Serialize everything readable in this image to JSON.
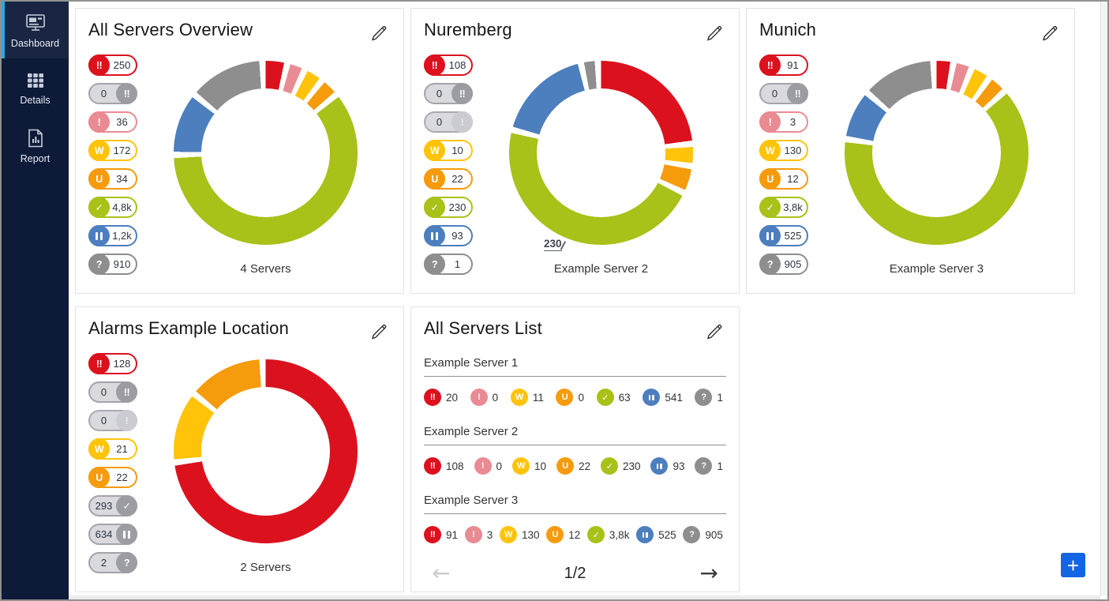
{
  "sidebar": {
    "items": [
      {
        "label": "Dashboard",
        "icon": "dashboard-icon",
        "active": true
      },
      {
        "label": "Details",
        "icon": "details-icon",
        "active": false
      },
      {
        "label": "Report",
        "icon": "report-icon",
        "active": false
      }
    ]
  },
  "colors": {
    "down": "#dc111e",
    "down-ack": "#9c9ca3",
    "down-partial": "#e98b93",
    "warning": "#ffc40a",
    "unusual": "#f59b0c",
    "up": "#a9c118",
    "paused": "#4d7ebe",
    "unknown": "#8e8e8e",
    "accent": "#1266e3",
    "sidebar_bg": "#0d1a38",
    "active_stripe": "#2ea7e0"
  },
  "cards": [
    {
      "type": "donut",
      "title": "All Servers Overview",
      "caption": "4 Servers",
      "badges": [
        {
          "status": "down",
          "value": "250",
          "variant": "active"
        },
        {
          "status": "down-ack",
          "value": "0",
          "variant": "muted"
        },
        {
          "status": "down-partial",
          "value": "36",
          "variant": "active"
        },
        {
          "status": "warning",
          "value": "172",
          "variant": "active"
        },
        {
          "status": "unusual",
          "value": "34",
          "variant": "active"
        },
        {
          "status": "up",
          "value": "4,8k",
          "variant": "active"
        },
        {
          "status": "paused",
          "value": "1,2k",
          "variant": "active"
        },
        {
          "status": "unknown",
          "value": "910",
          "variant": "active"
        }
      ],
      "segments": [
        {
          "status": "down",
          "pct": 3.5
        },
        {
          "status": "down-partial",
          "pct": 2.3
        },
        {
          "status": "warning",
          "pct": 2.6
        },
        {
          "status": "unusual",
          "pct": 2.6
        },
        {
          "status": "up",
          "pct": 64.5
        },
        {
          "status": "paused",
          "pct": 11.0
        },
        {
          "status": "unknown",
          "pct": 13.5
        }
      ]
    },
    {
      "type": "donut",
      "title": "Nuremberg",
      "caption": "Example Server 2",
      "annotation": "230",
      "badges": [
        {
          "status": "down",
          "value": "108",
          "variant": "active"
        },
        {
          "status": "down-ack",
          "value": "0",
          "variant": "muted"
        },
        {
          "status": "down-partial",
          "value": "0",
          "variant": "muted-light"
        },
        {
          "status": "warning",
          "value": "10",
          "variant": "active"
        },
        {
          "status": "unusual",
          "value": "22",
          "variant": "active"
        },
        {
          "status": "up",
          "value": "230",
          "variant": "active"
        },
        {
          "status": "paused",
          "value": "93",
          "variant": "active"
        },
        {
          "status": "unknown",
          "value": "1",
          "variant": "active"
        }
      ],
      "segments": [
        {
          "status": "down",
          "pct": 24.5
        },
        {
          "status": "warning",
          "pct": 3.0
        },
        {
          "status": "unusual",
          "pct": 4.0
        },
        {
          "status": "up",
          "pct": 49.0
        },
        {
          "status": "paused",
          "pct": 17.5
        },
        {
          "status": "unknown",
          "pct": 2.0
        }
      ]
    },
    {
      "type": "donut",
      "title": "Munich",
      "caption": "Example Server 3",
      "badges": [
        {
          "status": "down",
          "value": "91",
          "variant": "active"
        },
        {
          "status": "down-ack",
          "value": "0",
          "variant": "muted"
        },
        {
          "status": "down-partial",
          "value": "3",
          "variant": "active"
        },
        {
          "status": "warning",
          "value": "130",
          "variant": "active"
        },
        {
          "status": "unusual",
          "value": "12",
          "variant": "active"
        },
        {
          "status": "up",
          "value": "3,8k",
          "variant": "active"
        },
        {
          "status": "paused",
          "value": "525",
          "variant": "active"
        },
        {
          "status": "unknown",
          "value": "905",
          "variant": "active"
        }
      ],
      "segments": [
        {
          "status": "down",
          "pct": 2.6
        },
        {
          "status": "down-partial",
          "pct": 2.4
        },
        {
          "status": "warning",
          "pct": 2.6
        },
        {
          "status": "unusual",
          "pct": 2.6
        },
        {
          "status": "up",
          "pct": 68.3
        },
        {
          "status": "paused",
          "pct": 8.5
        },
        {
          "status": "unknown",
          "pct": 13.0
        }
      ]
    },
    {
      "type": "donut",
      "title": "Alarms Example Location",
      "caption": "2 Servers",
      "badges": [
        {
          "status": "down",
          "value": "128",
          "variant": "active"
        },
        {
          "status": "down-ack",
          "value": "0",
          "variant": "muted"
        },
        {
          "status": "down-partial",
          "value": "0",
          "variant": "muted-light"
        },
        {
          "status": "warning",
          "value": "21",
          "variant": "active"
        },
        {
          "status": "unusual",
          "value": "22",
          "variant": "active"
        },
        {
          "status": "up",
          "value": "293",
          "variant": "muted"
        },
        {
          "status": "paused",
          "value": "634",
          "variant": "muted"
        },
        {
          "status": "unknown",
          "value": "2",
          "variant": "muted"
        }
      ],
      "segments": [
        {
          "status": "down",
          "pct": 75.0
        },
        {
          "status": "warning",
          "pct": 12.0
        },
        {
          "status": "unusual",
          "pct": 13.0
        }
      ]
    },
    {
      "type": "list",
      "title": "All Servers List",
      "servers": [
        {
          "name": "Example Server 1",
          "counts": [
            {
              "status": "down",
              "value": "20"
            },
            {
              "status": "down-partial",
              "value": "0"
            },
            {
              "status": "warning",
              "value": "11"
            },
            {
              "status": "unusual",
              "value": "0"
            },
            {
              "status": "up",
              "value": "63"
            },
            {
              "status": "paused",
              "value": "541"
            },
            {
              "status": "unknown",
              "value": "1"
            }
          ]
        },
        {
          "name": "Example Server 2",
          "counts": [
            {
              "status": "down",
              "value": "108"
            },
            {
              "status": "down-partial",
              "value": "0"
            },
            {
              "status": "warning",
              "value": "10"
            },
            {
              "status": "unusual",
              "value": "22"
            },
            {
              "status": "up",
              "value": "230"
            },
            {
              "status": "paused",
              "value": "93"
            },
            {
              "status": "unknown",
              "value": "1"
            }
          ]
        },
        {
          "name": "Example Server 3",
          "counts": [
            {
              "status": "down",
              "value": "91"
            },
            {
              "status": "down-partial",
              "value": "3"
            },
            {
              "status": "warning",
              "value": "130"
            },
            {
              "status": "unusual",
              "value": "12"
            },
            {
              "status": "up",
              "value": "3,8k"
            },
            {
              "status": "paused",
              "value": "525"
            },
            {
              "status": "unknown",
              "value": "905"
            }
          ]
        }
      ],
      "pagination": {
        "label": "1/2",
        "prev_icon": "arrow-left",
        "next_icon": "arrow-right"
      }
    }
  ],
  "add_widget_label": "+"
}
